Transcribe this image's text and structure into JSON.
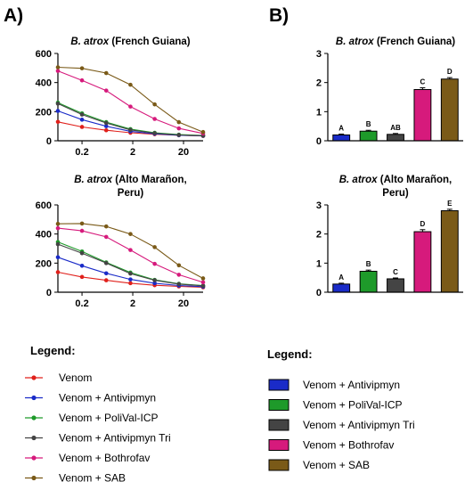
{
  "panels": {
    "a_label": "A)",
    "b_label": "B)"
  },
  "colors": {
    "venom": "#e0201b",
    "antivipmyn": "#1a2bc8",
    "polival": "#1e9a2a",
    "antivipmyn_tri": "#444444",
    "bothrofav": "#d61a7c",
    "sab": "#7a5a18"
  },
  "legend_lines": {
    "title": "Legend:",
    "items": [
      "Venom",
      "Venom + Antivipmyn",
      "Venom + PoliVal-ICP",
      "Venom + Antivipmyn Tri",
      "Venom + Bothrofav",
      "Venom + SAB"
    ]
  },
  "legend_bars": {
    "title": "Legend:",
    "items": [
      "Venom + Antivipmyn",
      "Venom + PoliVal-ICP",
      "Venom + Antivipmyn Tri",
      "Venom + Bothrofav",
      "Venom + SAB"
    ]
  },
  "chart_data": [
    {
      "id": "A1",
      "type": "line",
      "title_species": "B. atrox",
      "title_rest": " (French Guiana)",
      "x_scale": "log",
      "x": [
        0.067,
        0.2,
        0.6,
        1.8,
        5.4,
        16.2,
        48.6
      ],
      "xticks": [
        0.2,
        2,
        20
      ],
      "xtick_labels": [
        "0.2",
        "2",
        "20"
      ],
      "xlim": [
        0.067,
        48.6
      ],
      "ylim": [
        0,
        600
      ],
      "yticks": [
        0,
        200,
        400,
        600
      ],
      "series": [
        {
          "name": "Venom",
          "color_key": "venom",
          "values": [
            130,
            95,
            72,
            55,
            45,
            38,
            33
          ]
        },
        {
          "name": "Venom + Antivipmyn",
          "color_key": "antivipmyn",
          "values": [
            205,
            145,
            100,
            65,
            48,
            38,
            34
          ]
        },
        {
          "name": "Venom + PoliVal-ICP",
          "color_key": "polival",
          "values": [
            262,
            188,
            128,
            80,
            55,
            42,
            36
          ]
        },
        {
          "name": "Venom + Antivipmyn Tri",
          "color_key": "antivipmyn_tri",
          "values": [
            255,
            180,
            122,
            75,
            52,
            40,
            35
          ]
        },
        {
          "name": "Venom + Bothrofav",
          "color_key": "bothrofav",
          "values": [
            480,
            415,
            345,
            235,
            150,
            85,
            50
          ]
        },
        {
          "name": "Venom + SAB",
          "color_key": "sab",
          "values": [
            505,
            498,
            465,
            385,
            250,
            128,
            60
          ]
        }
      ]
    },
    {
      "id": "A2",
      "type": "line",
      "title_species": "B. atrox",
      "title_rest": " (Alto Marañon,",
      "title_line2": "Peru)",
      "x_scale": "log",
      "x": [
        0.067,
        0.2,
        0.6,
        1.8,
        5.4,
        16.2,
        48.6
      ],
      "xticks": [
        0.2,
        2,
        20
      ],
      "xtick_labels": [
        "0.2",
        "2",
        "20"
      ],
      "xlim": [
        0.067,
        48.6
      ],
      "ylim": [
        0,
        600
      ],
      "yticks": [
        0,
        200,
        400,
        600
      ],
      "series": [
        {
          "name": "Venom",
          "color_key": "venom",
          "values": [
            138,
            105,
            82,
            62,
            48,
            40,
            34
          ]
        },
        {
          "name": "Venom + Antivipmyn",
          "color_key": "antivipmyn",
          "values": [
            240,
            182,
            130,
            88,
            62,
            46,
            38
          ]
        },
        {
          "name": "Venom + PoliVal-ICP",
          "color_key": "polival",
          "values": [
            345,
            280,
            205,
            135,
            85,
            58,
            45
          ]
        },
        {
          "name": "Venom + Antivipmyn Tri",
          "color_key": "antivipmyn_tri",
          "values": [
            330,
            268,
            200,
            128,
            82,
            56,
            44
          ]
        },
        {
          "name": "Venom + Bothrofav",
          "color_key": "bothrofav",
          "values": [
            440,
            422,
            380,
            290,
            195,
            120,
            68
          ]
        },
        {
          "name": "Venom + SAB",
          "color_key": "sab",
          "values": [
            470,
            472,
            452,
            400,
            310,
            185,
            95
          ]
        }
      ]
    },
    {
      "id": "B1",
      "type": "bar",
      "title_species": "B. atrox",
      "title_rest": " (French Guiana)",
      "categories": [
        "Venom + Antivipmyn",
        "Venom + PoliVal-ICP",
        "Venom + Antivipmyn Tri",
        "Venom + Bothrofav",
        "Venom + SAB"
      ],
      "color_keys": [
        "antivipmyn",
        "polival",
        "antivipmyn_tri",
        "bothrofav",
        "sab"
      ],
      "values": [
        0.2,
        0.33,
        0.22,
        1.76,
        2.12
      ],
      "errors": [
        0.03,
        0.03,
        0.03,
        0.06,
        0.05
      ],
      "sig_labels": [
        "A",
        "B",
        "AB",
        "C",
        "D"
      ],
      "ylim": [
        0,
        3
      ],
      "yticks": [
        0,
        1,
        2,
        3
      ]
    },
    {
      "id": "B2",
      "type": "bar",
      "title_species": "B. atrox",
      "title_rest": " (Alto Marañon,",
      "title_line2": "Peru)",
      "categories": [
        "Venom + Antivipmyn",
        "Venom + PoliVal-ICP",
        "Venom + Antivipmyn Tri",
        "Venom + Bothrofav",
        "Venom + SAB"
      ],
      "color_keys": [
        "antivipmyn",
        "polival",
        "antivipmyn_tri",
        "bothrofav",
        "sab"
      ],
      "values": [
        0.28,
        0.72,
        0.46,
        2.08,
        2.8
      ],
      "errors": [
        0.03,
        0.04,
        0.03,
        0.07,
        0.05
      ],
      "sig_labels": [
        "A",
        "B",
        "C",
        "D",
        "E"
      ],
      "ylim": [
        0,
        3
      ],
      "yticks": [
        0,
        1,
        2,
        3
      ]
    }
  ]
}
